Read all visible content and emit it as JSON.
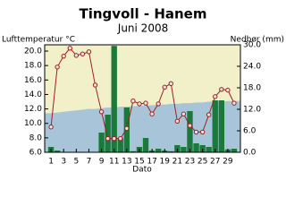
{
  "chart_data": {
    "type": "combo",
    "title": "Tingvoll - Hanem",
    "subtitle": "Juni 2008",
    "y_label": "Lufttemperatur °C",
    "y2_label": "Nedbør (mm)",
    "x_label": "Dato",
    "x": [
      1,
      2,
      3,
      4,
      5,
      6,
      7,
      8,
      9,
      10,
      11,
      12,
      13,
      14,
      15,
      16,
      17,
      18,
      19,
      20,
      21,
      22,
      23,
      24,
      25,
      26,
      27,
      28,
      29,
      30
    ],
    "xlim": [
      0,
      31
    ],
    "xticks": [
      1,
      3,
      5,
      7,
      9,
      11,
      13,
      15,
      17,
      19,
      21,
      23,
      25,
      27,
      29
    ],
    "ylim": [
      6,
      20.87
    ],
    "yticks": [
      {
        "value": 6,
        "label": "6.0"
      },
      {
        "value": 8,
        "label": "8.0"
      },
      {
        "value": 10,
        "label": "10.0"
      },
      {
        "value": 12,
        "label": "12.0"
      },
      {
        "value": 14,
        "label": "14.0"
      },
      {
        "value": 16,
        "label": "16.0"
      },
      {
        "value": 18,
        "label": "18.0"
      },
      {
        "value": 20,
        "label": "20.0"
      }
    ],
    "y2lim": [
      0,
      30
    ],
    "y2ticks": [
      {
        "value": 0,
        "label": "0.0"
      },
      {
        "value": 6,
        "label": "6.0"
      },
      {
        "value": 12,
        "label": "12.0"
      },
      {
        "value": 18,
        "label": "18.0"
      },
      {
        "value": 24,
        "label": "24.0"
      },
      {
        "value": 30,
        "label": "30.0"
      }
    ],
    "normal_band": {
      "color": "#a8c4d8",
      "values": [
        11.4,
        11.5,
        11.6,
        11.7,
        11.8,
        11.9,
        12.0,
        12.0,
        12.1,
        12.2,
        12.2,
        12.3,
        12.3,
        12.4,
        12.4,
        12.5,
        12.5,
        12.6,
        12.6,
        12.7,
        12.7,
        12.8,
        12.8,
        12.9,
        12.9,
        13.0,
        13.0,
        13.0,
        13.1,
        13.1
      ]
    },
    "background": "#f2f0c8",
    "series": [
      {
        "type": "bar",
        "axis": "y2",
        "color": "#1a7a3a",
        "values": [
          1.5,
          0.5,
          0,
          0,
          0,
          0,
          0,
          0,
          5.5,
          10.5,
          29.7,
          4,
          12.5,
          0.3,
          1.5,
          4,
          0.5,
          1,
          0.5,
          0.3,
          2,
          1.5,
          11.5,
          2.5,
          2,
          1.5,
          14.5,
          14.5,
          0.8,
          1
        ]
      },
      {
        "type": "line",
        "color": "#a02020",
        "values": [
          9.5,
          17.8,
          19.3,
          20.4,
          19.4,
          19.6,
          19.9,
          15.3,
          11.6,
          7.9,
          7.9,
          7.9,
          9.3,
          13.1,
          12.7,
          12.8,
          11.3,
          12.7,
          15.0,
          15.5,
          10.3,
          11.3,
          9.7,
          8.8,
          8.8,
          11.2,
          13.7,
          14.7,
          14.6,
          12.8
        ]
      }
    ]
  }
}
